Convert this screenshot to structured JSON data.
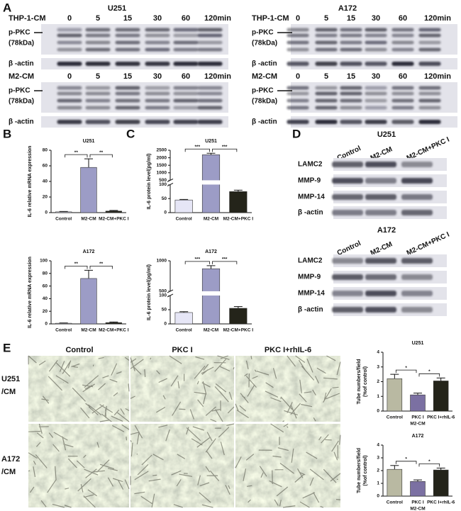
{
  "panel_labels": [
    "A",
    "B",
    "C",
    "D",
    "E"
  ],
  "blots_a": [
    {
      "title": "U251",
      "groups": [
        {
          "treatment": "THP-1-CM",
          "times": [
            "0",
            "5",
            "15",
            "30",
            "60",
            "120min"
          ],
          "target": "p-PKC",
          "size": "(78kDa)",
          "loading": "β -actin"
        },
        {
          "treatment": "M2-CM",
          "times": [
            "0",
            "5",
            "15",
            "30",
            "60",
            "120min"
          ],
          "target": "p-PKC",
          "size": "(78kDa)",
          "loading": "β -actin"
        }
      ]
    },
    {
      "title": "A172",
      "groups": [
        {
          "treatment": "THP-1-CM",
          "times": [
            "0",
            "5",
            "15",
            "30",
            "60",
            "120min"
          ],
          "target": "p-PKC",
          "size": "(78kDa)",
          "loading": "β -actin"
        },
        {
          "treatment": "M2-CM",
          "times": [
            "0",
            "5",
            "15",
            "30",
            "60",
            "120min"
          ],
          "target": "p-PKC",
          "size": "(78kDa)",
          "loading": "β -actin"
        }
      ]
    }
  ],
  "blots_d": [
    {
      "title": "U251",
      "columns": [
        "Control",
        "M2-CM",
        "M2-CM+PKC I"
      ],
      "rows": [
        "LAMC2",
        "MMP-9",
        "MMP-14",
        "β -actin"
      ]
    },
    {
      "title": "A172",
      "columns": [
        "Control",
        "M2-CM",
        "M2-CM+PKC I"
      ],
      "rows": [
        "LAMC2",
        "MMP-9",
        "MMP-14",
        "β -actin"
      ]
    }
  ],
  "images_e": {
    "columns": [
      "Control",
      "PKC I",
      "PKC I+rhIL-6"
    ],
    "rows": [
      [
        "U251",
        "/CM"
      ],
      [
        "A172",
        "/CM"
      ]
    ]
  },
  "chart_data": [
    {
      "type": "bar",
      "title": "U251",
      "ylabel": "IL-6 relative mRNA expression",
      "categories": [
        "Control",
        "M2-CM",
        "M2-CM+PKC I"
      ],
      "values": [
        1,
        58,
        2
      ],
      "errors": [
        0.5,
        11,
        0.8
      ],
      "colors": [
        "#e6e6f6",
        "#9c9cc6",
        "#24241a"
      ],
      "ylim": [
        0,
        80
      ],
      "yticks": [
        0,
        20,
        40,
        60,
        80
      ],
      "significance": [
        "**",
        "**"
      ]
    },
    {
      "type": "bar",
      "title": "A172",
      "ylabel": "IL-6 relative mRNA expression",
      "categories": [
        "Control",
        "M2-CM",
        "M2-CM+PKC I"
      ],
      "values": [
        1,
        72,
        2
      ],
      "errors": [
        0.5,
        13,
        1
      ],
      "colors": [
        "#e6e6f6",
        "#9c9cc6",
        "#24241a"
      ],
      "ylim": [
        0,
        100
      ],
      "yticks": [
        0,
        20,
        40,
        60,
        80,
        100
      ],
      "significance": [
        "**",
        "**"
      ]
    },
    {
      "type": "bar",
      "title": "U251",
      "ylabel": "IL-6 protein level(pg/ml)",
      "categories": [
        "Control",
        "M2-CM",
        "M2-CM+PKC I"
      ],
      "values": [
        45,
        2200,
        75
      ],
      "errors": [
        2,
        100,
        5
      ],
      "colors": [
        "#e6e6f6",
        "#9c9cc6",
        "#24241a"
      ],
      "ylim": [
        0,
        2500
      ],
      "ybreak": [
        100,
        500
      ],
      "yticks": [
        0,
        50,
        100,
        500,
        1000,
        1500,
        2000,
        2500
      ],
      "significance": [
        "***",
        "***"
      ]
    },
    {
      "type": "bar",
      "title": "A172",
      "ylabel": "IL-6 protein level(pg/ml)",
      "categories": [
        "Control",
        "M2-CM",
        "M2-CM+PKC I"
      ],
      "values": [
        40,
        870,
        55
      ],
      "errors": [
        3,
        50,
        6
      ],
      "colors": [
        "#e6e6f6",
        "#9c9cc6",
        "#24241a"
      ],
      "ylim": [
        0,
        1000
      ],
      "ybreak": [
        100,
        500
      ],
      "yticks": [
        0,
        50,
        100,
        500,
        1000
      ],
      "significance": [
        "***",
        "***"
      ]
    },
    {
      "type": "bar",
      "title": "U251",
      "ylabel": [
        "Tube numbers/field",
        "(%of control)"
      ],
      "categories": [
        "Control",
        "PKC I",
        "PKC I+rhIL-6"
      ],
      "group": "M2-CM",
      "values": [
        2.2,
        1.1,
        2.05
      ],
      "errors": [
        0.3,
        0.12,
        0.2
      ],
      "colors": [
        "#b9b9a2",
        "#7b70a2",
        "#24241a"
      ],
      "ylim": [
        0,
        4
      ],
      "yticks": [
        0,
        1,
        2,
        3,
        4
      ],
      "significance": [
        "*",
        "*"
      ]
    },
    {
      "type": "bar",
      "title": "A172",
      "ylabel": [
        "Tube numbers/field",
        "(%of control)"
      ],
      "categories": [
        "Control",
        "PKC I",
        "PKC I+rhIL-6"
      ],
      "group": "M2-CM",
      "values": [
        2.1,
        1.15,
        2.05
      ],
      "errors": [
        0.3,
        0.12,
        0.15
      ],
      "colors": [
        "#b9b9a2",
        "#7b70a2",
        "#24241a"
      ],
      "ylim": [
        0,
        4
      ],
      "yticks": [
        0,
        1,
        2,
        3,
        4
      ],
      "significance": [
        "*",
        "*"
      ]
    }
  ]
}
